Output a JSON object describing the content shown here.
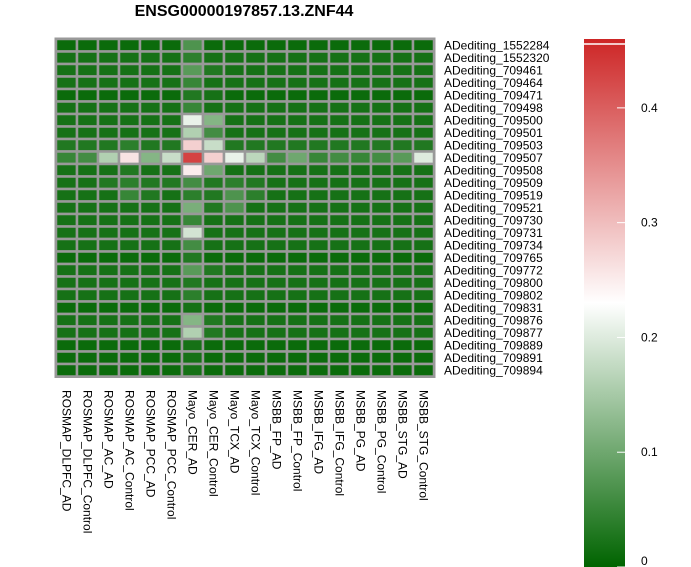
{
  "chart_data": {
    "type": "heatmap",
    "title": "ENSG00000197857.13.ZNF44",
    "columns": [
      "ROSMAP_DLPFC_AD",
      "ROSMAP_DLPFC_Control",
      "ROSMAP_AC_AD",
      "ROSMAP_AC_Control",
      "ROSMAP_PCC_AD",
      "ROSMAP_PCC_Control",
      "Mayo_CER_AD",
      "Mayo_CER_Control",
      "Mayo_TCX_AD",
      "Mayo_TCX_Control",
      "MSBB_FP_AD",
      "MSBB_FP_Control",
      "MSBB_IFG_AD",
      "MSBB_IFG_Control",
      "MSBB_PG_AD",
      "MSBB_PG_Control",
      "MSBB_STG_AD",
      "MSBB_STG_Control"
    ],
    "rows": [
      "ADediting_1552284",
      "ADediting_1552320",
      "ADediting_709461",
      "ADediting_709464",
      "ADediting_709471",
      "ADediting_709498",
      "ADediting_709500",
      "ADediting_709501",
      "ADediting_709503",
      "ADediting_709507",
      "ADediting_709508",
      "ADediting_709509",
      "ADediting_709519",
      "ADediting_709521",
      "ADediting_709730",
      "ADediting_709731",
      "ADediting_709734",
      "ADediting_709765",
      "ADediting_709772",
      "ADediting_709800",
      "ADediting_709802",
      "ADediting_709831",
      "ADediting_709876",
      "ADediting_709877",
      "ADediting_709889",
      "ADediting_709891",
      "ADediting_709894"
    ],
    "values": [
      [
        0.01,
        0.01,
        0.01,
        0.01,
        0.01,
        0.01,
        0.07,
        0.01,
        0.01,
        0.01,
        0.01,
        0.01,
        0.01,
        0.01,
        0.01,
        0.01,
        0.01,
        0.01
      ],
      [
        0.02,
        0.02,
        0.02,
        0.02,
        0.02,
        0.02,
        0.04,
        0.02,
        0.02,
        0.02,
        0.02,
        0.02,
        0.02,
        0.02,
        0.02,
        0.02,
        0.02,
        0.02
      ],
      [
        0.02,
        0.02,
        0.02,
        0.02,
        0.02,
        0.02,
        0.08,
        0.03,
        0.02,
        0.02,
        0.02,
        0.02,
        0.02,
        0.02,
        0.02,
        0.02,
        0.02,
        0.02
      ],
      [
        0.02,
        0.02,
        0.02,
        0.02,
        0.02,
        0.02,
        0.05,
        0.02,
        0.02,
        0.02,
        0.02,
        0.02,
        0.02,
        0.02,
        0.02,
        0.02,
        0.02,
        0.02
      ],
      [
        0.01,
        0.01,
        0.01,
        0.01,
        0.01,
        0.01,
        0.03,
        0.02,
        0.01,
        0.01,
        0.01,
        0.01,
        0.01,
        0.01,
        0.01,
        0.01,
        0.01,
        0.01
      ],
      [
        0.02,
        0.02,
        0.02,
        0.02,
        0.02,
        0.02,
        0.05,
        0.02,
        0.02,
        0.02,
        0.02,
        0.02,
        0.02,
        0.02,
        0.02,
        0.02,
        0.02,
        0.02
      ],
      [
        0.02,
        0.02,
        0.02,
        0.02,
        0.02,
        0.02,
        0.21,
        0.12,
        0.02,
        0.02,
        0.02,
        0.02,
        0.02,
        0.02,
        0.02,
        0.02,
        0.02,
        0.02
      ],
      [
        0.02,
        0.02,
        0.02,
        0.02,
        0.02,
        0.02,
        0.16,
        0.06,
        0.02,
        0.02,
        0.02,
        0.02,
        0.02,
        0.02,
        0.02,
        0.02,
        0.02,
        0.02
      ],
      [
        0.03,
        0.03,
        0.03,
        0.04,
        0.03,
        0.03,
        0.28,
        0.18,
        0.03,
        0.03,
        0.03,
        0.03,
        0.03,
        0.03,
        0.03,
        0.03,
        0.03,
        0.03
      ],
      [
        0.05,
        0.06,
        0.16,
        0.26,
        0.12,
        0.18,
        0.43,
        0.28,
        0.21,
        0.17,
        0.06,
        0.1,
        0.05,
        0.06,
        0.05,
        0.06,
        0.08,
        0.2
      ],
      [
        0.02,
        0.02,
        0.02,
        0.03,
        0.02,
        0.02,
        0.25,
        0.1,
        0.02,
        0.02,
        0.02,
        0.02,
        0.02,
        0.02,
        0.02,
        0.02,
        0.02,
        0.02
      ],
      [
        0.02,
        0.02,
        0.03,
        0.04,
        0.03,
        0.03,
        0.06,
        0.03,
        0.04,
        0.03,
        0.02,
        0.02,
        0.02,
        0.02,
        0.02,
        0.02,
        0.02,
        0.02
      ],
      [
        0.02,
        0.02,
        0.02,
        0.05,
        0.03,
        0.02,
        0.04,
        0.03,
        0.07,
        0.04,
        0.02,
        0.02,
        0.02,
        0.02,
        0.02,
        0.02,
        0.02,
        0.02
      ],
      [
        0.02,
        0.02,
        0.02,
        0.02,
        0.02,
        0.02,
        0.11,
        0.03,
        0.07,
        0.02,
        0.02,
        0.02,
        0.02,
        0.02,
        0.02,
        0.02,
        0.02,
        0.02
      ],
      [
        0.02,
        0.02,
        0.02,
        0.02,
        0.02,
        0.02,
        0.05,
        0.02,
        0.02,
        0.02,
        0.02,
        0.02,
        0.02,
        0.02,
        0.02,
        0.02,
        0.02,
        0.02
      ],
      [
        0.02,
        0.02,
        0.02,
        0.02,
        0.02,
        0.02,
        0.19,
        0.02,
        0.02,
        0.02,
        0.02,
        0.02,
        0.02,
        0.02,
        0.02,
        0.02,
        0.02,
        0.02
      ],
      [
        0.02,
        0.02,
        0.02,
        0.02,
        0.02,
        0.02,
        0.06,
        0.02,
        0.02,
        0.02,
        0.02,
        0.02,
        0.02,
        0.02,
        0.02,
        0.02,
        0.02,
        0.02
      ],
      [
        0.01,
        0.01,
        0.01,
        0.01,
        0.01,
        0.01,
        0.03,
        0.01,
        0.01,
        0.01,
        0.01,
        0.01,
        0.01,
        0.01,
        0.01,
        0.01,
        0.01,
        0.01
      ],
      [
        0.02,
        0.02,
        0.02,
        0.02,
        0.02,
        0.02,
        0.08,
        0.03,
        0.02,
        0.02,
        0.02,
        0.02,
        0.02,
        0.02,
        0.02,
        0.02,
        0.02,
        0.02
      ],
      [
        0.02,
        0.02,
        0.02,
        0.02,
        0.02,
        0.02,
        0.03,
        0.02,
        0.02,
        0.02,
        0.02,
        0.02,
        0.02,
        0.02,
        0.02,
        0.02,
        0.02,
        0.02
      ],
      [
        0.02,
        0.02,
        0.02,
        0.02,
        0.02,
        0.02,
        0.04,
        0.02,
        0.02,
        0.02,
        0.02,
        0.02,
        0.02,
        0.02,
        0.02,
        0.02,
        0.02,
        0.02
      ],
      [
        0.01,
        0.01,
        0.01,
        0.01,
        0.01,
        0.01,
        0.02,
        0.01,
        0.01,
        0.01,
        0.01,
        0.01,
        0.01,
        0.01,
        0.01,
        0.01,
        0.01,
        0.01
      ],
      [
        0.02,
        0.02,
        0.02,
        0.02,
        0.02,
        0.02,
        0.12,
        0.03,
        0.02,
        0.02,
        0.02,
        0.02,
        0.02,
        0.02,
        0.02,
        0.02,
        0.02,
        0.02
      ],
      [
        0.02,
        0.02,
        0.02,
        0.02,
        0.02,
        0.02,
        0.16,
        0.03,
        0.02,
        0.02,
        0.02,
        0.02,
        0.02,
        0.02,
        0.02,
        0.02,
        0.02,
        0.02
      ],
      [
        0.01,
        0.01,
        0.01,
        0.01,
        0.01,
        0.01,
        0.02,
        0.01,
        0.01,
        0.01,
        0.01,
        0.01,
        0.01,
        0.01,
        0.01,
        0.01,
        0.01,
        0.01
      ],
      [
        0.01,
        0.01,
        0.01,
        0.01,
        0.01,
        0.01,
        0.02,
        0.01,
        0.01,
        0.01,
        0.01,
        0.01,
        0.01,
        0.01,
        0.01,
        0.01,
        0.01,
        0.01
      ],
      [
        0.01,
        0.01,
        0.01,
        0.01,
        0.01,
        0.01,
        0.02,
        0.01,
        0.01,
        0.01,
        0.01,
        0.01,
        0.01,
        0.01,
        0.01,
        0.01,
        0.01,
        0.01
      ]
    ],
    "colorbar": {
      "min": 0,
      "max": 0.46,
      "midpoint": 0.23,
      "ticks": [
        0,
        0.1,
        0.2,
        0.3,
        0.4
      ],
      "tick_labels": [
        "0",
        "0.1",
        "0.2",
        "0.3",
        "0.4"
      ],
      "colors": {
        "low": "#006400",
        "mid": "#ffffff",
        "high": "#cd2626"
      }
    },
    "grid_color": "#999999",
    "legend_position": "right"
  }
}
